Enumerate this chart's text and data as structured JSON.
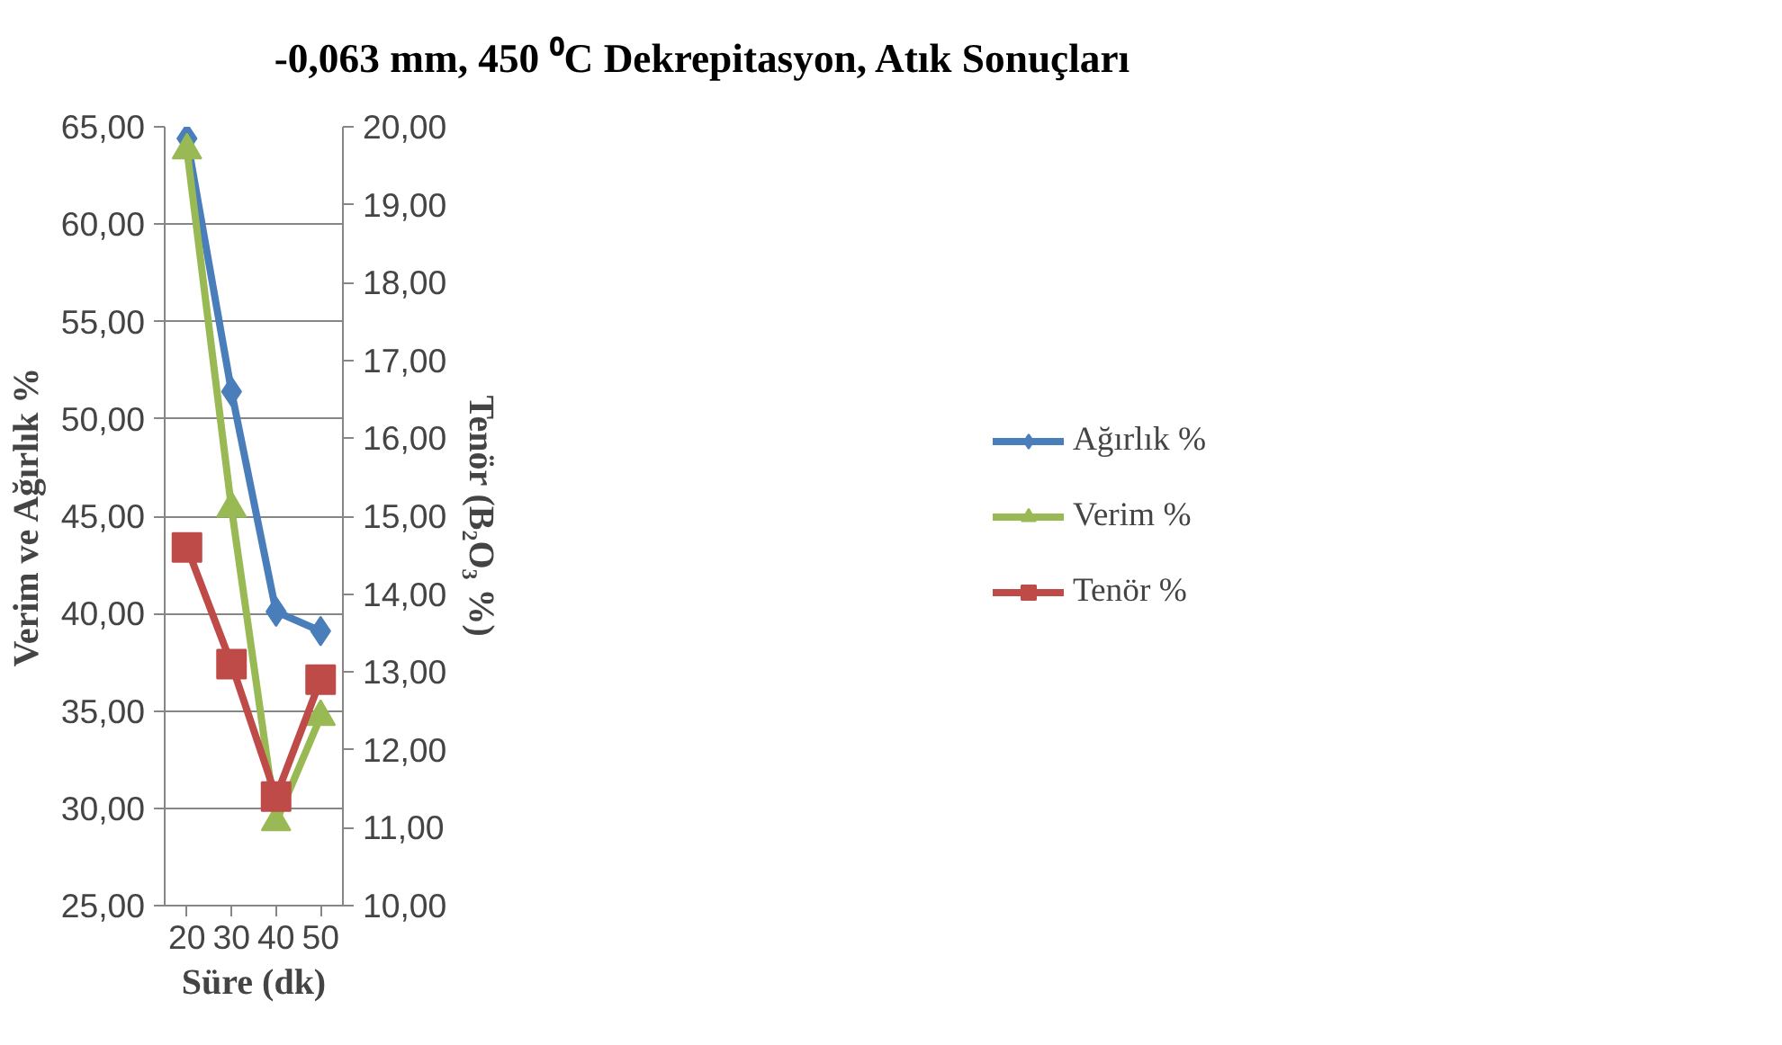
{
  "chart_data": {
    "type": "line",
    "title": "-0,063 mm, 450 ⁰C Dekrepitasyon, Atık Sonuçları",
    "xlabel": "Süre (dk)",
    "ylabel": "Verim ve Ağırlık %",
    "y2label": "Tenör (B₂O₃ %)",
    "categories": [
      "20",
      "30",
      "40",
      "50"
    ],
    "series": [
      {
        "name": "Ağırlık %",
        "color": "#4a7ebb",
        "marker": "diamond",
        "values": [
          64.4,
          51.4,
          40.1,
          39.1
        ]
      },
      {
        "name": "Verim %",
        "color": "#98b954",
        "marker": "triangle",
        "values": [
          63.8,
          45.4,
          29.3,
          34.7
        ]
      },
      {
        "name": "Tenör %",
        "color": "#be4b48",
        "marker": "square",
        "axis": "y2",
        "values": [
          14.6,
          13.1,
          11.4,
          12.9
        ]
      }
    ],
    "ylim": [
      25,
      65
    ],
    "yticks": [
      {
        "value": 25,
        "label": "25,00"
      },
      {
        "value": 30,
        "label": "30,00"
      },
      {
        "value": 35,
        "label": "35,00"
      },
      {
        "value": 40,
        "label": "40,00"
      },
      {
        "value": 45,
        "label": "45,00"
      },
      {
        "value": 50,
        "label": "50,00"
      },
      {
        "value": 55,
        "label": "55,00"
      },
      {
        "value": 60,
        "label": "60,00"
      },
      {
        "value": 65,
        "label": "65,00"
      }
    ],
    "y2lim": [
      10,
      20
    ],
    "y2ticks": [
      {
        "value": 10,
        "label": "10,00"
      },
      {
        "value": 11,
        "label": "11,00"
      },
      {
        "value": 12,
        "label": "12,00"
      },
      {
        "value": 13,
        "label": "13,00"
      },
      {
        "value": 14,
        "label": "14,00"
      },
      {
        "value": 15,
        "label": "15,00"
      },
      {
        "value": 16,
        "label": "16,00"
      },
      {
        "value": 17,
        "label": "17,00"
      },
      {
        "value": 18,
        "label": "18,00"
      },
      {
        "value": 19,
        "label": "19,00"
      },
      {
        "value": 20,
        "label": "20,00"
      }
    ],
    "grid": "y",
    "legend": "right",
    "line_style": "solid"
  }
}
